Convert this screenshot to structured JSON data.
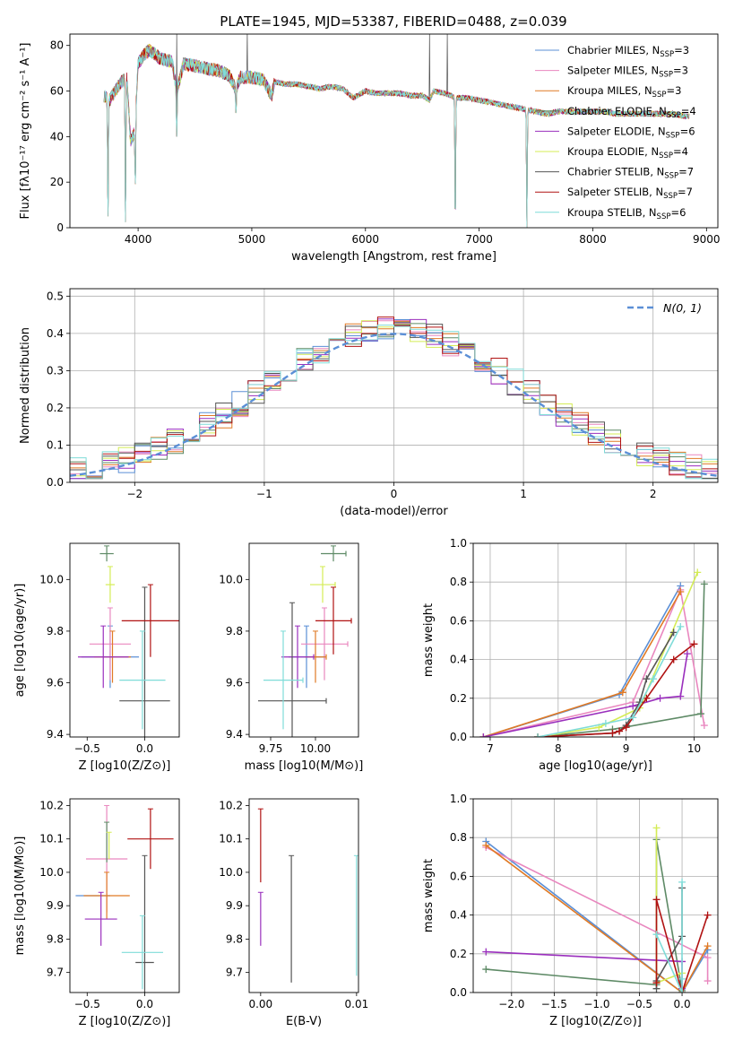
{
  "figure": {
    "title": "PLATE=1945, MJD=53387, FIBERID=0488, z=0.039",
    "models": [
      {
        "name": "Chabrier MILES",
        "nssp": "3",
        "color": "#5b8fd6"
      },
      {
        "name": "Salpeter MILES",
        "nssp": "3",
        "color": "#e987bf"
      },
      {
        "name": "Kroupa MILES",
        "nssp": "3",
        "color": "#e07a25"
      },
      {
        "name": "Chabrier ELODIE",
        "nssp": "4",
        "color": "#5e8a66"
      },
      {
        "name": "Salpeter ELODIE",
        "nssp": "6",
        "color": "#9a2fbd"
      },
      {
        "name": "Kroupa ELODIE",
        "nssp": "4",
        "color": "#d4ec55"
      },
      {
        "name": "Chabrier STELIB",
        "nssp": "7",
        "color": "#555555"
      },
      {
        "name": "Salpeter STELIB",
        "nssp": "7",
        "color": "#b01212"
      },
      {
        "name": "Kroupa STELIB",
        "nssp": "6",
        "color": "#7fdcd8"
      }
    ]
  },
  "chart_data": [
    {
      "id": "spectrum",
      "type": "line",
      "xlabel": "wavelength [Angstrom, rest frame]",
      "ylabel": "Flux [fλ10⁻¹⁷ erg cm⁻² s⁻¹ A⁻¹]",
      "xlim": [
        3400,
        9100
      ],
      "ylim": [
        0,
        85
      ],
      "xticks": [
        4000,
        5000,
        6000,
        7000,
        8000,
        9000
      ],
      "yticks": [
        0,
        20,
        40,
        60,
        80
      ],
      "legend_position": "top-right",
      "anchor_x": [
        3700,
        3750,
        3800,
        3850,
        3900,
        3933,
        3969,
        4000,
        4050,
        4100,
        4200,
        4300,
        4340,
        4400,
        4500,
        4600,
        4700,
        4800,
        4861,
        4900,
        5000,
        5100,
        5175,
        5200,
        5300,
        5400,
        5500,
        5600,
        5700,
        5800,
        5893,
        6000,
        6100,
        6200,
        6300,
        6400,
        6500,
        6563,
        6600,
        6700,
        6800,
        6900,
        7000,
        7100,
        7200,
        7300,
        7400,
        7500,
        7600,
        7700,
        7800,
        7900,
        8000,
        8100,
        8200,
        8300,
        8400,
        8500,
        8600,
        8700,
        8800
      ],
      "anchor_y": [
        58,
        56,
        60,
        64,
        66,
        38,
        42,
        72,
        76,
        78,
        74,
        73,
        60,
        72,
        71,
        70,
        69,
        67,
        61,
        66,
        66,
        65,
        58,
        64,
        63,
        63,
        62,
        61,
        62,
        61,
        57,
        60,
        59,
        59,
        59,
        58,
        58,
        56,
        60,
        59,
        57,
        57,
        56,
        55,
        54,
        53,
        52,
        51,
        50,
        51,
        51,
        51,
        51,
        51,
        50,
        50,
        50,
        50,
        50,
        50,
        49
      ],
      "dips": [
        [
          3735,
          3
        ],
        [
          3889,
          0
        ],
        [
          3975,
          18
        ],
        [
          4340,
          40
        ],
        [
          4861,
          50
        ],
        [
          6790,
          0
        ],
        [
          7420,
          0
        ]
      ],
      "spikes": [
        [
          4340,
          85
        ],
        [
          4960,
          85
        ],
        [
          6563,
          85
        ],
        [
          6720,
          85
        ]
      ]
    },
    {
      "id": "residuals",
      "type": "histogram",
      "xlabel": "(data-model)/error",
      "ylabel": "Normed distribution",
      "xlim": [
        -2.5,
        2.5
      ],
      "ylim": [
        0,
        0.52
      ],
      "xticks": [
        -2,
        -1,
        0,
        1,
        2
      ],
      "yticks": [
        0,
        0.1,
        0.2,
        0.3,
        0.4,
        0.5
      ],
      "bin_width": 0.125,
      "legend": "N(0, 1)",
      "legend_position": "top-right"
    },
    {
      "id": "z-age",
      "type": "errorbar",
      "xlabel": "Z [log10(Z/Z⊙)]",
      "ylabel": "age  [log10(age/yr)]",
      "xlim": [
        -0.65,
        0.3
      ],
      "ylim": [
        9.39,
        10.14
      ],
      "xticks": [
        -0.5,
        0.0
      ],
      "xtick_labels": [
        "−0.5",
        "0.0"
      ],
      "yticks": [
        9.4,
        9.6,
        9.8,
        10.0
      ],
      "xerr_caps": false,
      "points": [
        {
          "m": 0,
          "x": -0.3,
          "xerr": 0.25,
          "y": 9.7,
          "yerr": 0.12
        },
        {
          "m": 1,
          "x": -0.3,
          "xerr": 0.18,
          "y": 9.75,
          "yerr": 0.14
        },
        {
          "m": 2,
          "x": -0.28,
          "xerr": 0.16,
          "y": 9.7,
          "yerr": 0.1
        },
        {
          "m": 3,
          "x": -0.33,
          "xerr": 0.06,
          "y": 10.1,
          "yerr": 0.03
        },
        {
          "m": 4,
          "x": -0.36,
          "xerr": 0.22,
          "y": 9.7,
          "yerr": 0.12
        },
        {
          "m": 5,
          "x": -0.3,
          "xerr": 0.04,
          "y": 9.98,
          "yerr": 0.07
        },
        {
          "m": 6,
          "x": 0.0,
          "xerr": 0.22,
          "y": 9.53,
          "yerr": 0.44
        },
        {
          "m": 7,
          "x": 0.05,
          "xerr": 0.25,
          "y": 9.84,
          "yerr": 0.14
        },
        {
          "m": 8,
          "x": -0.02,
          "xerr": 0.2,
          "y": 9.61,
          "yerr": 0.19
        }
      ]
    },
    {
      "id": "mass-age",
      "type": "errorbar",
      "xlabel": "mass [log10(M/M⊙)]",
      "ylabel": "",
      "xlim": [
        9.63,
        10.24
      ],
      "ylim": [
        9.39,
        10.14
      ],
      "xticks": [
        9.75,
        10.0
      ],
      "xtick_labels": [
        "9.75",
        "10.00"
      ],
      "yticks": [
        9.4,
        9.6,
        9.8,
        10.0
      ],
      "xerr_caps": true,
      "points": [
        {
          "m": 0,
          "x": 9.95,
          "xerr": 0.1,
          "y": 9.7,
          "yerr": 0.12
        },
        {
          "m": 1,
          "x": 10.05,
          "xerr": 0.13,
          "y": 9.75,
          "yerr": 0.14
        },
        {
          "m": 2,
          "x": 10.0,
          "xerr": 0.06,
          "y": 9.7,
          "yerr": 0.1
        },
        {
          "m": 3,
          "x": 10.1,
          "xerr": 0.07,
          "y": 10.1,
          "yerr": 0.03
        },
        {
          "m": 4,
          "x": 9.9,
          "xerr": 0.09,
          "y": 9.7,
          "yerr": 0.12
        },
        {
          "m": 5,
          "x": 10.04,
          "xerr": 0.07,
          "y": 9.98,
          "yerr": 0.07
        },
        {
          "m": 6,
          "x": 9.87,
          "xerr": 0.19,
          "y": 9.53,
          "yerr": 0.38
        },
        {
          "m": 7,
          "x": 10.1,
          "xerr": 0.1,
          "y": 9.84,
          "yerr": 0.13
        },
        {
          "m": 8,
          "x": 9.82,
          "xerr": 0.11,
          "y": 9.61,
          "yerr": 0.19
        }
      ]
    },
    {
      "id": "age-weight",
      "type": "line",
      "xlabel": "age  [log10(age/yr)]",
      "ylabel": "mass weight",
      "xlim": [
        6.75,
        10.35
      ],
      "ylim": [
        0,
        1.0
      ],
      "xticks": [
        7,
        8,
        9,
        10
      ],
      "yticks": [
        0,
        0.2,
        0.4,
        0.6,
        0.8,
        1.0
      ],
      "series": [
        {
          "m": 0,
          "x": [
            6.9,
            8.9,
            9.8
          ],
          "y": [
            0.0,
            0.22,
            0.78
          ]
        },
        {
          "m": 1,
          "x": [
            6.9,
            9.1,
            9.8,
            10.15
          ],
          "y": [
            0.0,
            0.18,
            0.76,
            0.06
          ]
        },
        {
          "m": 2,
          "x": [
            6.9,
            8.95,
            9.8
          ],
          "y": [
            0.0,
            0.23,
            0.75
          ]
        },
        {
          "m": 3,
          "x": [
            7.7,
            8.8,
            10.1,
            10.15
          ],
          "y": [
            0.0,
            0.04,
            0.12,
            0.79
          ]
        },
        {
          "m": 4,
          "x": [
            6.9,
            9.1,
            9.5,
            9.8,
            9.9
          ],
          "y": [
            0.0,
            0.16,
            0.2,
            0.21,
            0.43
          ]
        },
        {
          "m": 5,
          "x": [
            7.7,
            8.6,
            9.2,
            10.05
          ],
          "y": [
            0.0,
            0.05,
            0.15,
            0.85
          ]
        },
        {
          "m": 6,
          "x": [
            7.7,
            8.8,
            8.9,
            9.0,
            9.2,
            9.3,
            9.7
          ],
          "y": [
            0.0,
            0.02,
            0.03,
            0.06,
            0.18,
            0.3,
            0.54
          ]
        },
        {
          "m": 7,
          "x": [
            7.7,
            8.8,
            8.9,
            9.0,
            9.3,
            9.7,
            10.0
          ],
          "y": [
            0.0,
            0.02,
            0.03,
            0.05,
            0.2,
            0.4,
            0.48
          ]
        },
        {
          "m": 8,
          "x": [
            7.7,
            8.7,
            9.1,
            9.4,
            9.8
          ],
          "y": [
            0.0,
            0.07,
            0.1,
            0.3,
            0.57
          ]
        }
      ]
    },
    {
      "id": "z-mass",
      "type": "errorbar",
      "xlabel": "Z [log10(Z/Z⊙)]",
      "ylabel": "mass [log10(M/M⊙)]",
      "xlim": [
        -0.65,
        0.3
      ],
      "ylim": [
        9.64,
        10.22
      ],
      "xticks": [
        -0.5,
        0.0
      ],
      "xtick_labels": [
        "−0.5",
        "0.0"
      ],
      "yticks": [
        9.7,
        9.8,
        9.9,
        10.0,
        10.1,
        10.2
      ],
      "xerr_caps": false,
      "points": [
        {
          "m": 0,
          "x": -0.45,
          "xerr": 0.15,
          "y": 9.93,
          "yerr": 0.0
        },
        {
          "m": 1,
          "x": -0.33,
          "xerr": 0.18,
          "y": 10.04,
          "yerr": 0.16
        },
        {
          "m": 2,
          "x": -0.33,
          "xerr": 0.2,
          "y": 9.93,
          "yerr": 0.07
        },
        {
          "m": 3,
          "x": -0.33,
          "xerr": 0.0,
          "y": 10.09,
          "yerr": 0.06
        },
        {
          "m": 4,
          "x": -0.38,
          "xerr": 0.14,
          "y": 9.86,
          "yerr": 0.08
        },
        {
          "m": 5,
          "x": -0.31,
          "xerr": 0.0,
          "y": 10.08,
          "yerr": 0.04
        },
        {
          "m": 6,
          "x": 0.0,
          "xerr": 0.08,
          "y": 9.73,
          "yerr": 0.32
        },
        {
          "m": 7,
          "x": 0.05,
          "xerr": 0.2,
          "y": 10.1,
          "yerr": 0.09
        },
        {
          "m": 8,
          "x": -0.02,
          "xerr": 0.18,
          "y": 9.76,
          "yerr": 0.11
        }
      ]
    },
    {
      "id": "ebv-mass",
      "type": "errorbar",
      "xlabel": "E(B-V)",
      "ylabel": "",
      "xlim": [
        -0.0012,
        0.0102
      ],
      "ylim": [
        9.64,
        10.22
      ],
      "xticks": [
        0.0,
        0.01
      ],
      "xtick_labels": [
        "0.00",
        "0.01"
      ],
      "yticks": [
        9.7,
        9.8,
        9.9,
        10.0,
        10.1,
        10.2
      ],
      "xerr_caps": false,
      "points": [
        {
          "m": 4,
          "x": 0.0,
          "xerr": 0.0,
          "y": 9.86,
          "yerr": 0.08
        },
        {
          "m": 7,
          "x": 0.0,
          "xerr": 0.0,
          "y": 10.08,
          "yerr": 0.11
        },
        {
          "m": 6,
          "x": 0.0032,
          "xerr": 0.0,
          "y": 9.86,
          "yerr": 0.19
        },
        {
          "m": 8,
          "x": 0.01,
          "xerr": 0.0,
          "y": 9.87,
          "yerr": 0.18
        }
      ]
    },
    {
      "id": "z-weight",
      "type": "line",
      "xlabel": "Z [log10(Z/Z⊙)]",
      "ylabel": "mass weight",
      "xlim": [
        -2.45,
        0.42
      ],
      "ylim": [
        0,
        1.0
      ],
      "xticks": [
        -2.0,
        -1.5,
        -1.0,
        -0.5,
        0.0
      ],
      "xtick_labels": [
        "−2.0",
        "−1.5",
        "−1.0",
        "−0.5",
        "0.0"
      ],
      "yticks": [
        0,
        0.2,
        0.4,
        0.6,
        0.8,
        1.0
      ],
      "series": [
        {
          "m": 0,
          "x": [
            -2.3,
            0.0,
            0.3
          ],
          "y": [
            0.78,
            0.0,
            0.22
          ]
        },
        {
          "m": 1,
          "x": [
            -2.3,
            0.3,
            0.3
          ],
          "y": [
            0.75,
            0.18,
            0.06
          ]
        },
        {
          "m": 2,
          "x": [
            -2.3,
            0.0,
            0.3
          ],
          "y": [
            0.76,
            0.0,
            0.24
          ]
        },
        {
          "m": 3,
          "x": [
            -2.3,
            -0.3,
            -0.3,
            0.0
          ],
          "y": [
            0.12,
            0.04,
            0.79,
            0.01
          ]
        },
        {
          "m": 4,
          "x": [
            -2.3,
            0.0,
            0.0
          ],
          "y": [
            0.21,
            0.16,
            0.02
          ]
        },
        {
          "m": 5,
          "x": [
            -0.3,
            -0.3,
            0.0
          ],
          "y": [
            0.85,
            0.05,
            0.1
          ]
        },
        {
          "m": 6,
          "x": [
            -0.3,
            -0.3,
            0.0,
            0.0
          ],
          "y": [
            0.02,
            0.06,
            0.29,
            0.54
          ]
        },
        {
          "m": 7,
          "x": [
            -0.3,
            -0.3,
            0.0,
            0.3
          ],
          "y": [
            0.05,
            0.48,
            0.0,
            0.4
          ]
        },
        {
          "m": 8,
          "x": [
            -0.3,
            0.0,
            0.0,
            0.0
          ],
          "y": [
            0.3,
            0.0,
            0.57,
            0.07
          ]
        }
      ]
    }
  ]
}
